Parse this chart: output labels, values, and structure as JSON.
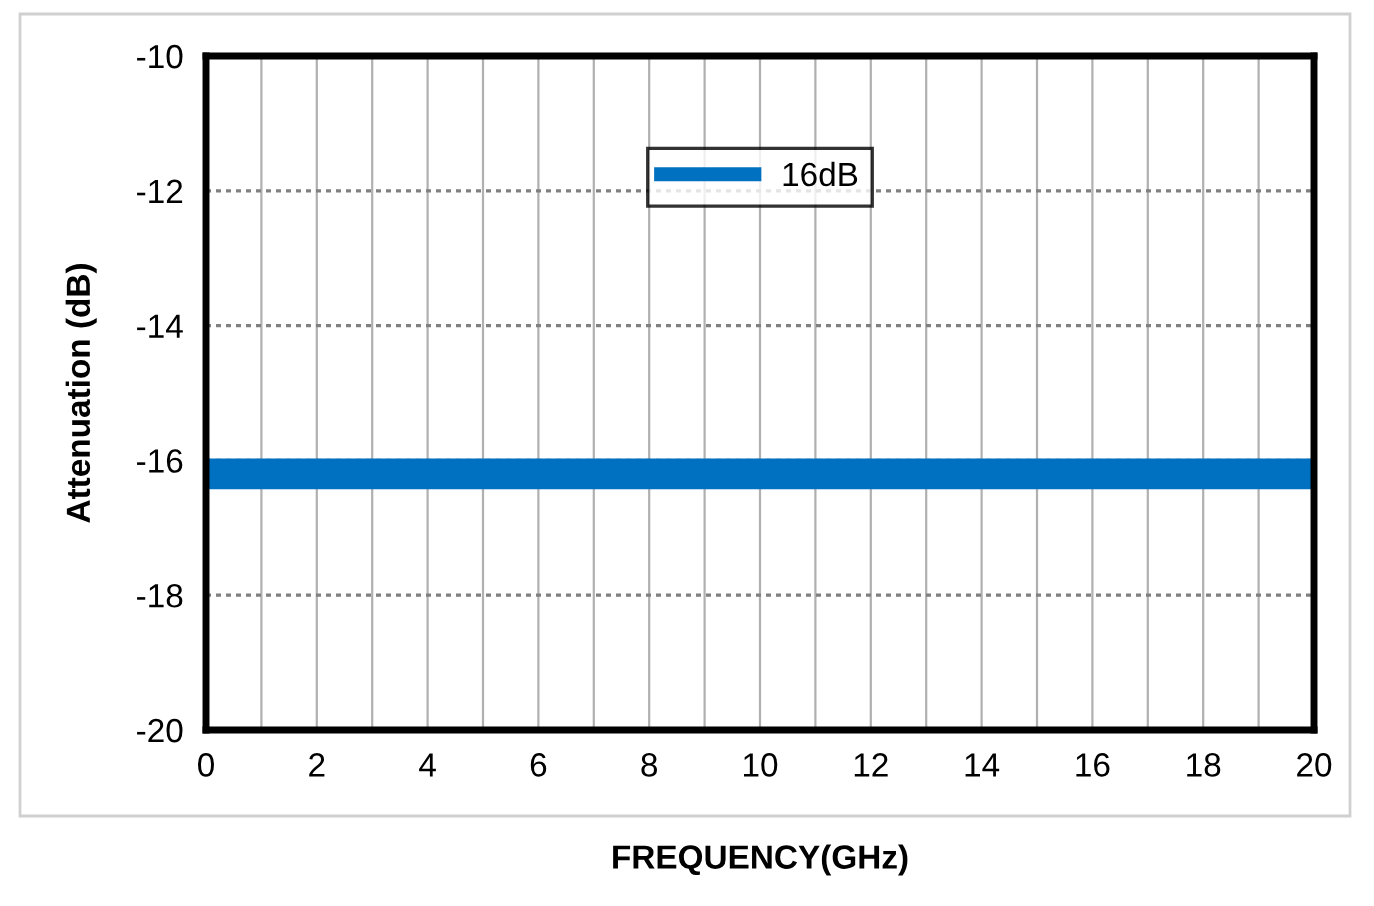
{
  "chart_data": {
    "type": "line",
    "xlabel": "FREQUENCY(GHz)",
    "ylabel": "Attenuation (dB)",
    "x": [
      0,
      20
    ],
    "series": [
      {
        "name": "16dB",
        "color": "#0070c0",
        "values": [
          -16.2,
          -16.2
        ]
      }
    ],
    "xlim": [
      0,
      20
    ],
    "xticks": [
      0,
      {
        "value": 1,
        "label": null
      },
      2,
      {
        "value": 3,
        "label": null
      },
      4,
      {
        "value": 5,
        "label": null
      },
      6,
      {
        "value": 7,
        "label": null
      },
      8,
      {
        "value": 9,
        "label": null
      },
      10,
      {
        "value": 11,
        "label": null
      },
      12,
      {
        "value": 13,
        "label": null
      },
      14,
      {
        "value": 15,
        "label": null
      },
      16,
      {
        "value": 17,
        "label": null
      },
      18,
      {
        "value": 19,
        "label": null
      },
      20
    ],
    "ylim": [
      -20,
      -10
    ],
    "yticks": [
      -20,
      -18,
      -16,
      -14,
      -12,
      -10
    ],
    "grid": true,
    "legend": "top",
    "marker": "none",
    "line_style": "solid"
  }
}
